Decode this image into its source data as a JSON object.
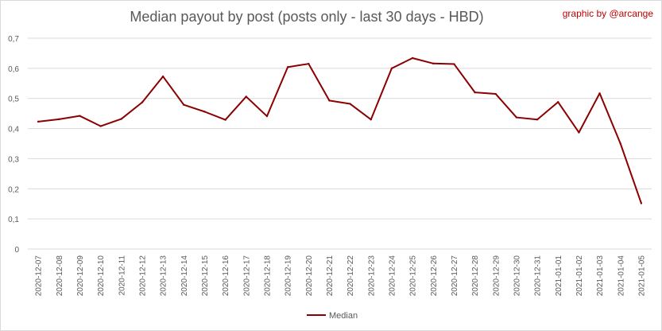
{
  "credit": "graphic by @arcange",
  "chart_data": {
    "type": "line",
    "title": "Median payout by post (posts only - last 30 days - HBD)",
    "xlabel": "",
    "ylabel": "",
    "ylim": [
      0,
      0.7
    ],
    "yticks": [
      "0",
      "0,1",
      "0,2",
      "0,3",
      "0,4",
      "0,5",
      "0,6",
      "0,7"
    ],
    "grid": true,
    "legend": "bottom",
    "categories": [
      "2020-12-07",
      "2020-12-08",
      "2020-12-09",
      "2020-12-10",
      "2020-12-11",
      "2020-12-12",
      "2020-12-13",
      "2020-12-14",
      "2020-12-15",
      "2020-12-16",
      "2020-12-17",
      "2020-12-18",
      "2020-12-19",
      "2020-12-20",
      "2020-12-21",
      "2020-12-22",
      "2020-12-23",
      "2020-12-24",
      "2020-12-25",
      "2020-12-26",
      "2020-12-27",
      "2020-12-28",
      "2020-12-29",
      "2020-12-30",
      "2020-12-31",
      "2021-01-01",
      "2021-01-02",
      "2021-01-03",
      "2021-01-04",
      "2021-01-05"
    ],
    "series": [
      {
        "name": "Median",
        "color": "#8b0000",
        "values": [
          0.423,
          0.431,
          0.442,
          0.408,
          0.432,
          0.487,
          0.573,
          0.479,
          0.456,
          0.429,
          0.506,
          0.441,
          0.604,
          0.615,
          0.493,
          0.482,
          0.43,
          0.6,
          0.634,
          0.616,
          0.614,
          0.52,
          0.515,
          0.437,
          0.43,
          0.488,
          0.387,
          0.517,
          0.35,
          0.152
        ]
      }
    ]
  }
}
